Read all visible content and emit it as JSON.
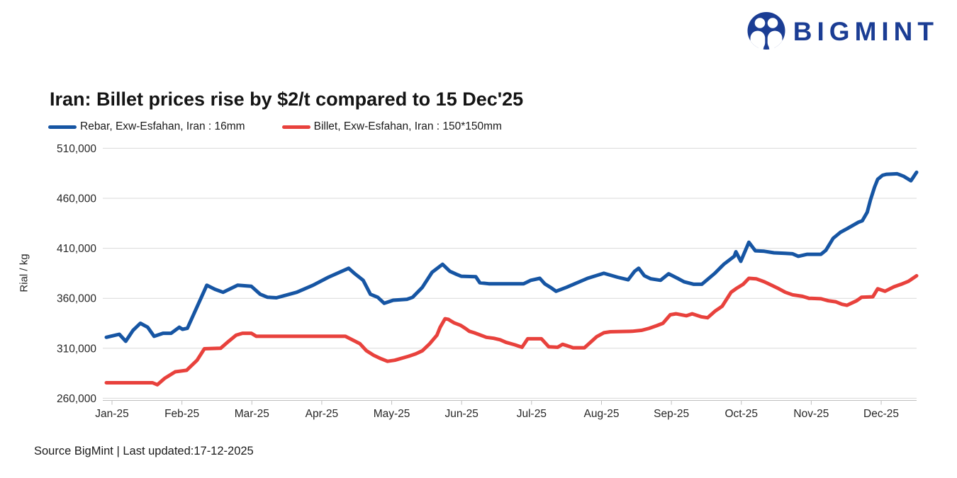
{
  "logo": {
    "wordmark": "BIGMINT",
    "brand_color": "#1b3d94"
  },
  "chart_data": {
    "type": "line",
    "title": "Iran: Billet prices rise by $2/t compared to 15 Dec'25",
    "ylabel": "Rial / kg",
    "ylim": [
      260000,
      510000
    ],
    "y_tick_labels": [
      "260,000",
      "310,000",
      "360,000",
      "410,000",
      "460,000",
      "510,000"
    ],
    "x_tick_labels": [
      "Jan-25",
      "Feb-25",
      "Mar-25",
      "Apr-25",
      "May-25",
      "Jun-25",
      "Jul-25",
      "Aug-25",
      "Sep-25",
      "Oct-25",
      "Nov-25",
      "Dec-25"
    ],
    "grid": "horizontal",
    "legend_position": "top-left",
    "source_note": "Source BigMint | Last updated:17-12-2025",
    "series": [
      {
        "name": "Rebar, Exw-Esfahan, Iran : 16mm",
        "color": "#1655a3",
        "points": [
          [
            0.0,
            321000
          ],
          [
            0.016,
            324000
          ],
          [
            0.024,
            317000
          ],
          [
            0.033,
            328000
          ],
          [
            0.042,
            335000
          ],
          [
            0.051,
            331000
          ],
          [
            0.059,
            322000
          ],
          [
            0.07,
            325000
          ],
          [
            0.08,
            325000
          ],
          [
            0.09,
            331000
          ],
          [
            0.094,
            329000
          ],
          [
            0.1,
            330000
          ],
          [
            0.124,
            373000
          ],
          [
            0.134,
            369000
          ],
          [
            0.144,
            366000
          ],
          [
            0.162,
            373000
          ],
          [
            0.179,
            372000
          ],
          [
            0.19,
            364000
          ],
          [
            0.199,
            361000
          ],
          [
            0.21,
            360500
          ],
          [
            0.235,
            366000
          ],
          [
            0.255,
            373000
          ],
          [
            0.274,
            381000
          ],
          [
            0.299,
            390000
          ],
          [
            0.306,
            385000
          ],
          [
            0.317,
            378000
          ],
          [
            0.326,
            364000
          ],
          [
            0.335,
            361000
          ],
          [
            0.343,
            355000
          ],
          [
            0.354,
            358000
          ],
          [
            0.371,
            359000
          ],
          [
            0.378,
            361000
          ],
          [
            0.39,
            371000
          ],
          [
            0.402,
            386000
          ],
          [
            0.415,
            394000
          ],
          [
            0.424,
            387000
          ],
          [
            0.432,
            384000
          ],
          [
            0.438,
            382000
          ],
          [
            0.456,
            381500
          ],
          [
            0.461,
            375500
          ],
          [
            0.472,
            374500
          ],
          [
            0.515,
            374500
          ],
          [
            0.524,
            378000
          ],
          [
            0.535,
            380000
          ],
          [
            0.541,
            374500
          ],
          [
            0.548,
            371000
          ],
          [
            0.555,
            367000
          ],
          [
            0.568,
            371000
          ],
          [
            0.594,
            380000
          ],
          [
            0.614,
            385000
          ],
          [
            0.631,
            381000
          ],
          [
            0.644,
            378500
          ],
          [
            0.652,
            387000
          ],
          [
            0.657,
            390000
          ],
          [
            0.664,
            382500
          ],
          [
            0.672,
            379500
          ],
          [
            0.684,
            378000
          ],
          [
            0.694,
            384500
          ],
          [
            0.705,
            380000
          ],
          [
            0.713,
            376500
          ],
          [
            0.725,
            374000
          ],
          [
            0.735,
            374000
          ],
          [
            0.751,
            385000
          ],
          [
            0.762,
            394000
          ],
          [
            0.775,
            402000
          ],
          [
            0.777,
            406500
          ],
          [
            0.783,
            397000
          ],
          [
            0.793,
            416000
          ],
          [
            0.801,
            407500
          ],
          [
            0.812,
            407000
          ],
          [
            0.824,
            405500
          ],
          [
            0.838,
            405000
          ],
          [
            0.847,
            404500
          ],
          [
            0.854,
            402000
          ],
          [
            0.865,
            404000
          ],
          [
            0.882,
            404000
          ],
          [
            0.888,
            408000
          ],
          [
            0.897,
            420000
          ],
          [
            0.906,
            426000
          ],
          [
            0.914,
            429500
          ],
          [
            0.928,
            436000
          ],
          [
            0.933,
            437500
          ],
          [
            0.939,
            446000
          ],
          [
            0.943,
            458000
          ],
          [
            0.948,
            471000
          ],
          [
            0.952,
            479000
          ],
          [
            0.958,
            483000
          ],
          [
            0.963,
            484000
          ],
          [
            0.976,
            484500
          ],
          [
            0.984,
            482000
          ],
          [
            0.993,
            477500
          ],
          [
            1.0,
            486000
          ]
        ]
      },
      {
        "name": "Billet, Exw-Esfahan, Iran : 150*150mm",
        "color": "#e8413c",
        "points": [
          [
            0.0,
            275500
          ],
          [
            0.057,
            275500
          ],
          [
            0.063,
            273500
          ],
          [
            0.072,
            280000
          ],
          [
            0.085,
            286500
          ],
          [
            0.099,
            288000
          ],
          [
            0.112,
            298000
          ],
          [
            0.121,
            309500
          ],
          [
            0.141,
            310000
          ],
          [
            0.151,
            317000
          ],
          [
            0.16,
            323000
          ],
          [
            0.168,
            325000
          ],
          [
            0.179,
            325000
          ],
          [
            0.185,
            322000
          ],
          [
            0.295,
            322000
          ],
          [
            0.313,
            314500
          ],
          [
            0.321,
            307500
          ],
          [
            0.33,
            303000
          ],
          [
            0.339,
            299500
          ],
          [
            0.347,
            297000
          ],
          [
            0.356,
            298000
          ],
          [
            0.373,
            302000
          ],
          [
            0.382,
            304500
          ],
          [
            0.39,
            307500
          ],
          [
            0.399,
            314500
          ],
          [
            0.408,
            323000
          ],
          [
            0.412,
            331000
          ],
          [
            0.418,
            339500
          ],
          [
            0.422,
            339000
          ],
          [
            0.429,
            335500
          ],
          [
            0.437,
            333000
          ],
          [
            0.443,
            330000
          ],
          [
            0.448,
            327000
          ],
          [
            0.454,
            325500
          ],
          [
            0.469,
            321000
          ],
          [
            0.478,
            320000
          ],
          [
            0.486,
            318500
          ],
          [
            0.493,
            316000
          ],
          [
            0.504,
            313500
          ],
          [
            0.513,
            311000
          ],
          [
            0.52,
            319500
          ],
          [
            0.537,
            319500
          ],
          [
            0.546,
            311500
          ],
          [
            0.557,
            311000
          ],
          [
            0.563,
            314000
          ],
          [
            0.569,
            312500
          ],
          [
            0.576,
            310500
          ],
          [
            0.59,
            310500
          ],
          [
            0.605,
            321500
          ],
          [
            0.614,
            325500
          ],
          [
            0.622,
            326500
          ],
          [
            0.649,
            327000
          ],
          [
            0.661,
            328000
          ],
          [
            0.67,
            330000
          ],
          [
            0.679,
            332500
          ],
          [
            0.687,
            335000
          ],
          [
            0.696,
            343500
          ],
          [
            0.703,
            344500
          ],
          [
            0.716,
            342500
          ],
          [
            0.723,
            344500
          ],
          [
            0.734,
            341500
          ],
          [
            0.742,
            340500
          ],
          [
            0.751,
            347000
          ],
          [
            0.76,
            352000
          ],
          [
            0.771,
            366000
          ],
          [
            0.777,
            369500
          ],
          [
            0.786,
            374000
          ],
          [
            0.793,
            380000
          ],
          [
            0.802,
            379500
          ],
          [
            0.812,
            376500
          ],
          [
            0.821,
            373000
          ],
          [
            0.83,
            369500
          ],
          [
            0.838,
            366000
          ],
          [
            0.847,
            363500
          ],
          [
            0.859,
            362000
          ],
          [
            0.867,
            360000
          ],
          [
            0.882,
            359500
          ],
          [
            0.891,
            357500
          ],
          [
            0.9,
            356500
          ],
          [
            0.908,
            354000
          ],
          [
            0.914,
            353000
          ],
          [
            0.926,
            357500
          ],
          [
            0.932,
            361000
          ],
          [
            0.946,
            361500
          ],
          [
            0.952,
            369500
          ],
          [
            0.961,
            367000
          ],
          [
            0.972,
            371500
          ],
          [
            0.981,
            374000
          ],
          [
            0.99,
            377000
          ],
          [
            1.0,
            382500
          ]
        ]
      }
    ]
  }
}
